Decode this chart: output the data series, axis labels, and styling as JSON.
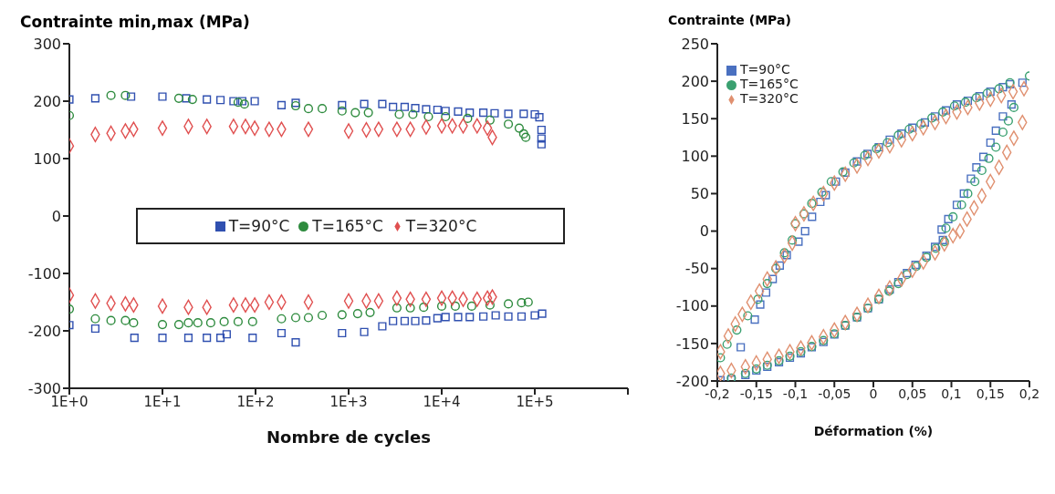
{
  "chart_data": [
    {
      "type": "scatter",
      "ylabel": "Contrainte min,max (MPa)",
      "xlabel": "Nombre de cycles",
      "log": "x",
      "xlim": [
        1,
        1000000
      ],
      "xticks": [
        {
          "value": 1,
          "label": "1E+0"
        },
        {
          "value": 10,
          "label": "1E+1"
        },
        {
          "value": 100,
          "label": "1E+2"
        },
        {
          "value": 1000,
          "label": "1E+3"
        },
        {
          "value": 10000,
          "label": "1E+4"
        },
        {
          "value": 100000,
          "label": "1E+5"
        },
        {
          "value": 1000000,
          "label": null
        }
      ],
      "ylim": [
        -300,
        300
      ],
      "yticks": [
        -300,
        -200,
        -100,
        0,
        100,
        200,
        300
      ],
      "grid": false,
      "legend": "center",
      "series": [
        {
          "name": "T=90°C",
          "color": "#3050b0",
          "marker": "square",
          "x": [
            1,
            1.9,
            4.6,
            10,
            18,
            30,
            42,
            58,
            72,
            98,
            190,
            270,
            850,
            1470,
            2300,
            3000,
            4000,
            5200,
            6800,
            9000,
            11000,
            15000,
            20000,
            28000,
            37000,
            52000,
            76000,
            100000,
            112000,
            118000,
            118000,
            118000,
            1,
            1.9,
            5,
            10,
            19,
            30,
            42,
            49,
            93,
            190,
            270,
            850,
            1470,
            2300,
            3000,
            4000,
            5200,
            6800,
            9000,
            11000,
            15000,
            20000,
            28000,
            38000,
            52000,
            72000,
            100000,
            120000
          ],
          "values": [
            203,
            205,
            208,
            208,
            205,
            203,
            202,
            200,
            200,
            200,
            193,
            197,
            193,
            195,
            195,
            190,
            190,
            188,
            186,
            185,
            183,
            182,
            180,
            180,
            179,
            178,
            178,
            177,
            172,
            150,
            135,
            125,
            -190,
            -196,
            -212,
            -212,
            -212,
            -212,
            -212,
            -206,
            -212,
            -204,
            -220,
            -204,
            -202,
            -192,
            -183,
            -183,
            -183,
            -182,
            -178,
            -176,
            -176,
            -176,
            -175,
            -173,
            -175,
            -175,
            -173,
            -170
          ]
        },
        {
          "name": "T=165°C",
          "color": "#2e8b3e",
          "marker": "circle",
          "x": [
            1,
            2.8,
            4,
            15,
            21,
            65,
            76,
            270,
            370,
            520,
            850,
            1180,
            1630,
            3500,
            4900,
            7200,
            11000,
            19000,
            33000,
            52000,
            68000,
            76000,
            80000,
            1,
            1.9,
            2.8,
            4,
            4.9,
            10,
            15,
            19,
            24,
            33,
            46,
            65,
            93,
            190,
            270,
            370,
            520,
            850,
            1250,
            1700,
            3300,
            4600,
            6400,
            10000,
            14000,
            21000,
            33000,
            52000,
            72000,
            85000
          ],
          "values": [
            175,
            210,
            210,
            205,
            203,
            198,
            195,
            192,
            187,
            187,
            183,
            180,
            180,
            177,
            177,
            173,
            173,
            170,
            167,
            160,
            153,
            143,
            137,
            -162,
            -179,
            -182,
            -182,
            -186,
            -189,
            -189,
            -186,
            -186,
            -186,
            -184,
            -184,
            -184,
            -179,
            -177,
            -177,
            -173,
            -172,
            -170,
            -168,
            -160,
            -160,
            -159,
            -157,
            -157,
            -157,
            -155,
            -153,
            -151,
            -150
          ]
        },
        {
          "name": "T=320°C",
          "color": "#e05050",
          "marker": "diamond",
          "x": [
            1,
            1.9,
            2.8,
            4,
            4.9,
            10,
            19,
            30,
            58,
            78,
            98,
            140,
            190,
            370,
            1000,
            1550,
            2100,
            3300,
            4600,
            6800,
            10000,
            13000,
            17000,
            24000,
            31000,
            35000,
            1,
            1.9,
            2.8,
            4,
            4.9,
            10,
            19,
            30,
            58,
            78,
            98,
            140,
            190,
            370,
            1000,
            1550,
            2100,
            3300,
            4600,
            6800,
            10000,
            13000,
            17000,
            24000,
            31000,
            35000
          ],
          "values": [
            122,
            142,
            144,
            148,
            151,
            153,
            156,
            156,
            156,
            156,
            153,
            151,
            151,
            151,
            148,
            150,
            151,
            151,
            151,
            155,
            157,
            157,
            157,
            157,
            153,
            137,
            -138,
            -148,
            -152,
            -153,
            -155,
            -157,
            -159,
            -159,
            -155,
            -155,
            -155,
            -150,
            -150,
            -150,
            -148,
            -148,
            -148,
            -143,
            -145,
            -145,
            -143,
            -143,
            -145,
            -145,
            -143,
            -141
          ]
        }
      ]
    },
    {
      "type": "scatter",
      "ylabel": "Contrainte  (MPa)",
      "xlabel": "Déformation  (%)",
      "xlim": [
        -0.2,
        0.2
      ],
      "xticks": [
        {
          "value": -0.2,
          "label": "-0,2"
        },
        {
          "value": -0.15,
          "label": "-0,15"
        },
        {
          "value": -0.1,
          "label": "-0,1"
        },
        {
          "value": -0.05,
          "label": "-0,05"
        },
        0,
        {
          "value": 0.05,
          "label": "0,05"
        },
        {
          "value": 0.1,
          "label": "0,1"
        },
        {
          "value": 0.15,
          "label": "0,15"
        },
        {
          "value": 0.2,
          "label": "0,2"
        }
      ],
      "ylim": [
        -200,
        250
      ],
      "yticks": [
        -200,
        -150,
        -100,
        -50,
        0,
        50,
        100,
        150,
        200,
        250
      ],
      "grid": false,
      "legend": "top left",
      "series": [
        {
          "name": "T=90°C",
          "color": "#4a70c0",
          "marker": "square",
          "x": [
            -0.17,
            -0.152,
            -0.145,
            -0.1375,
            -0.129,
            -0.12,
            -0.111,
            -0.096,
            -0.0875,
            -0.0786,
            -0.068,
            -0.061,
            -0.048,
            -0.036,
            -0.021,
            -0.0075,
            0.007,
            0.021,
            0.036,
            0.05,
            0.066,
            0.079,
            0.093,
            0.107,
            0.121,
            0.136,
            0.15,
            0.166,
            0.175,
            0.191,
            0.177,
            0.166,
            0.157,
            0.15,
            0.141,
            0.132,
            0.125,
            0.116,
            0.107,
            0.096,
            0.0875,
            0.089,
            0.079,
            0.068,
            0.054,
            0.043,
            0.032,
            0.021,
            0.007,
            -0.007,
            -0.021,
            -0.036,
            -0.05,
            -0.064,
            -0.079,
            -0.093,
            -0.107,
            -0.121,
            -0.136,
            -0.15,
            -0.164,
            -0.182,
            -0.196
          ],
          "values": [
            -155,
            -118,
            -98,
            -82,
            -64,
            -46,
            -32,
            -14,
            0,
            19,
            39,
            48,
            66,
            78,
            93,
            103,
            112,
            122,
            130,
            138,
            145,
            153,
            161,
            169,
            174,
            180,
            186,
            192,
            196,
            198,
            169,
            153,
            134,
            118,
            99,
            85,
            70,
            50,
            35,
            16,
            2,
            -12,
            -21,
            -33,
            -45,
            -56,
            -68,
            -78,
            -91,
            -103,
            -115,
            -126,
            -138,
            -148,
            -155,
            -163,
            -169,
            -175,
            -181,
            -186,
            -192,
            -198,
            -199
          ]
        },
        {
          "name": "T=165°C",
          "color": "#3aa070",
          "marker": "circle",
          "x": [
            -0.196,
            -0.1875,
            -0.175,
            -0.161,
            -0.148,
            -0.136,
            -0.125,
            -0.114,
            -0.104,
            -0.1,
            -0.089,
            -0.079,
            -0.066,
            -0.054,
            -0.039,
            -0.025,
            -0.011,
            0.004,
            0.018,
            0.032,
            0.046,
            0.061,
            0.075,
            0.089,
            0.104,
            0.118,
            0.132,
            0.146,
            0.161,
            0.175,
            0.2,
            0.18,
            0.173,
            0.166,
            0.157,
            0.148,
            0.139,
            0.13,
            0.121,
            0.113,
            0.102,
            0.093,
            0.091,
            0.08,
            0.068,
            0.055,
            0.043,
            0.032,
            0.02,
            0.007,
            -0.007,
            -0.021,
            -0.036,
            -0.05,
            -0.064,
            -0.079,
            -0.093,
            -0.107,
            -0.121,
            -0.136,
            -0.15,
            -0.164,
            -0.182
          ],
          "values": [
            -169,
            -151,
            -132,
            -113,
            -91,
            -70,
            -50,
            -29,
            -12,
            10,
            23,
            37,
            52,
            66,
            79,
            91,
            101,
            110,
            118,
            128,
            136,
            143,
            151,
            159,
            167,
            172,
            178,
            184,
            190,
            198,
            207,
            165,
            147,
            132,
            112,
            97,
            81,
            66,
            50,
            35,
            19,
            4,
            -14,
            -23,
            -35,
            -47,
            -58,
            -70,
            -80,
            -91,
            -103,
            -115,
            -126,
            -137,
            -146,
            -154,
            -161,
            -167,
            -173,
            -179,
            -184,
            -190,
            -196
          ]
        },
        {
          "name": "T=320°C",
          "color": "#e09070",
          "marker": "diamond",
          "x": [
            -0.196,
            -0.186,
            -0.177,
            -0.168,
            -0.157,
            -0.146,
            -0.136,
            -0.125,
            -0.114,
            -0.104,
            -0.1,
            -0.089,
            -0.077,
            -0.064,
            -0.05,
            -0.036,
            -0.021,
            -0.007,
            0.007,
            0.021,
            0.036,
            0.05,
            0.064,
            0.079,
            0.093,
            0.107,
            0.121,
            0.136,
            0.15,
            0.164,
            0.179,
            0.193,
            0.191,
            0.18,
            0.171,
            0.161,
            0.15,
            0.139,
            0.129,
            0.12,
            0.111,
            0.102,
            0.091,
            0.079,
            0.064,
            0.05,
            0.036,
            0.021,
            0.007,
            -0.007,
            -0.021,
            -0.036,
            -0.05,
            -0.064,
            -0.079,
            -0.093,
            -0.107,
            -0.121,
            -0.136,
            -0.15,
            -0.164,
            -0.182,
            -0.196
          ],
          "values": [
            -161,
            -140,
            -124,
            -111,
            -95,
            -80,
            -64,
            -49,
            -33,
            -16,
            10,
            23,
            37,
            50,
            64,
            76,
            87,
            97,
            107,
            114,
            122,
            130,
            138,
            145,
            153,
            159,
            165,
            171,
            176,
            181,
            186,
            190,
            145,
            124,
            105,
            85,
            66,
            47,
            31,
            16,
            0,
            -6,
            -17,
            -29,
            -41,
            -52,
            -64,
            -76,
            -87,
            -99,
            -111,
            -122,
            -132,
            -141,
            -149,
            -156,
            -161,
            -167,
            -171,
            -176,
            -181,
            -186,
            -190
          ]
        }
      ]
    }
  ]
}
